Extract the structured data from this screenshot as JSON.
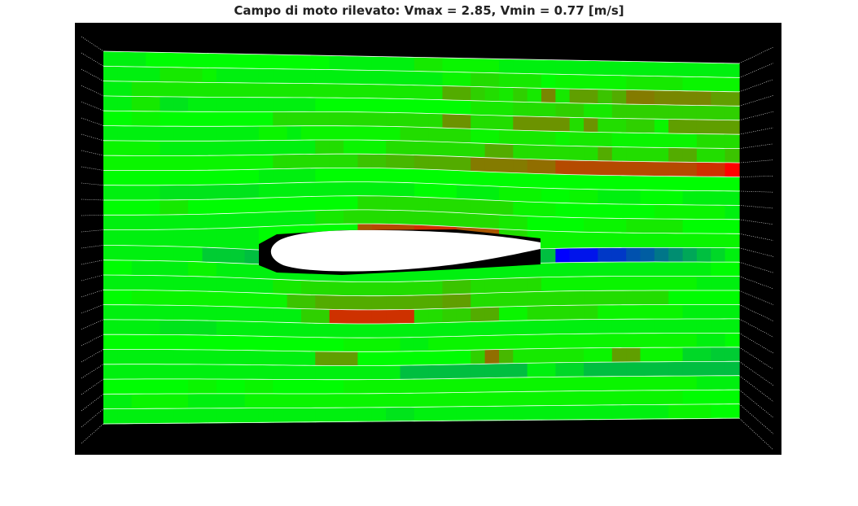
{
  "title": "Campo di moto rilevato: Vmax = 2.85, Vmin = 0.77 [m/s]",
  "chart_data": {
    "type": "heatmap",
    "title": "Campo di moto rilevato: Vmax = 2.85, Vmin = 0.77 [m/s]",
    "units": "m/s",
    "vmin": 0.77,
    "vmax": 2.85,
    "colormap": [
      "blue",
      "green",
      "red"
    ],
    "background": "#000000",
    "grid_line_color": "#ffffff",
    "airfoil_color": "#ffffff",
    "n_rows": 25,
    "n_cols": 45,
    "note_rows": "row 0 = top of field, values in m/s",
    "rows": [
      [
        1.75,
        1.75,
        1.75,
        1.8,
        1.8,
        1.8,
        1.8,
        1.8,
        1.8,
        1.8,
        1.8,
        1.8,
        1.8,
        1.8,
        1.8,
        1.8,
        1.75,
        1.75,
        1.75,
        1.75,
        1.75,
        1.75,
        1.9,
        1.9,
        1.85,
        1.85,
        1.85,
        1.85,
        1.75,
        1.75,
        1.75,
        1.75,
        1.75,
        1.75,
        1.75,
        1.75,
        1.75,
        1.75,
        1.75,
        1.75,
        1.75,
        1.75,
        1.75,
        1.75,
        1.75
      ],
      [
        1.75,
        1.75,
        1.75,
        1.75,
        1.9,
        1.9,
        1.9,
        1.85,
        1.75,
        1.75,
        1.75,
        1.75,
        1.75,
        1.75,
        1.75,
        1.75,
        1.75,
        1.75,
        1.75,
        1.75,
        1.75,
        1.75,
        1.75,
        1.75,
        1.85,
        1.85,
        1.95,
        1.95,
        1.9,
        1.9,
        1.9,
        1.8,
        1.85,
        1.85,
        1.85,
        1.85,
        1.85,
        1.9,
        1.9,
        1.9,
        1.9,
        1.85,
        1.85,
        1.85,
        1.85
      ],
      [
        1.75,
        1.75,
        1.9,
        1.9,
        1.9,
        1.9,
        1.9,
        1.9,
        1.9,
        1.9,
        1.9,
        1.9,
        1.9,
        1.9,
        1.9,
        1.9,
        1.9,
        1.9,
        1.9,
        1.9,
        1.9,
        1.9,
        1.9,
        1.9,
        2.15,
        2.15,
        2.0,
        1.95,
        1.9,
        2.0,
        1.9,
        2.3,
        1.9,
        2.2,
        2.2,
        2.05,
        2.15,
        2.35,
        2.35,
        2.3,
        2.3,
        2.3,
        2.3,
        2.2,
        2.2
      ],
      [
        1.75,
        1.75,
        1.9,
        1.9,
        1.7,
        1.7,
        1.75,
        1.75,
        1.75,
        1.75,
        1.75,
        1.75,
        1.75,
        1.75,
        1.75,
        1.8,
        1.8,
        1.8,
        1.8,
        1.8,
        1.8,
        1.8,
        1.8,
        1.8,
        1.8,
        1.8,
        1.9,
        1.9,
        1.9,
        1.95,
        1.95,
        1.95,
        2.0,
        2.0,
        1.9,
        1.9,
        2.0,
        2.0,
        2.0,
        2.0,
        2.0,
        2.0,
        2.0,
        2.0,
        2.0
      ],
      [
        1.8,
        1.8,
        1.85,
        1.85,
        1.8,
        1.8,
        1.8,
        1.8,
        1.8,
        1.8,
        1.8,
        1.8,
        1.95,
        1.95,
        1.95,
        1.95,
        1.95,
        1.95,
        1.95,
        1.95,
        1.95,
        1.95,
        1.95,
        1.95,
        2.25,
        2.25,
        1.95,
        1.95,
        1.95,
        2.25,
        2.25,
        2.25,
        2.25,
        1.95,
        2.25,
        1.95,
        1.95,
        2.0,
        2.0,
        1.85,
        2.2,
        2.2,
        2.2,
        2.2,
        2.2
      ],
      [
        1.75,
        1.75,
        1.75,
        1.75,
        1.75,
        1.75,
        1.75,
        1.75,
        1.75,
        1.75,
        1.75,
        1.85,
        1.85,
        1.75,
        1.85,
        1.85,
        1.85,
        1.85,
        1.85,
        1.85,
        1.85,
        1.95,
        1.95,
        1.95,
        1.95,
        1.95,
        1.85,
        1.85,
        1.9,
        1.9,
        1.9,
        1.9,
        1.85,
        1.9,
        1.9,
        1.9,
        1.85,
        1.85,
        1.85,
        1.85,
        1.85,
        1.85,
        1.95,
        1.95,
        1.95
      ],
      [
        1.85,
        1.85,
        1.85,
        1.85,
        1.75,
        1.75,
        1.75,
        1.75,
        1.75,
        1.75,
        1.75,
        1.75,
        1.75,
        1.75,
        1.75,
        1.95,
        1.95,
        1.85,
        1.85,
        1.85,
        1.95,
        1.95,
        1.95,
        1.95,
        1.95,
        1.95,
        1.95,
        2.15,
        2.15,
        1.95,
        1.95,
        1.95,
        1.95,
        1.95,
        1.95,
        2.15,
        1.95,
        1.95,
        1.95,
        1.95,
        2.15,
        2.15,
        1.95,
        1.95,
        2.05
      ],
      [
        1.85,
        1.85,
        1.85,
        1.85,
        1.85,
        1.85,
        1.85,
        1.85,
        1.85,
        1.85,
        1.85,
        1.85,
        1.95,
        1.95,
        1.95,
        1.95,
        1.95,
        1.95,
        2.05,
        2.05,
        2.1,
        2.1,
        2.15,
        2.15,
        2.15,
        2.15,
        2.35,
        2.35,
        2.35,
        2.35,
        2.4,
        2.4,
        2.55,
        2.55,
        2.55,
        2.55,
        2.55,
        2.55,
        2.55,
        2.55,
        2.55,
        2.55,
        2.65,
        2.65,
        2.85
      ],
      [
        1.8,
        1.8,
        1.8,
        1.8,
        1.8,
        1.8,
        1.8,
        1.8,
        1.8,
        1.8,
        1.8,
        1.75,
        1.75,
        1.75,
        1.75,
        1.8,
        1.8,
        1.8,
        1.8,
        1.8,
        1.8,
        1.8,
        1.8,
        1.8,
        1.8,
        1.8,
        1.8,
        1.8,
        1.8,
        1.8,
        1.8,
        1.8,
        1.8,
        1.8,
        1.8,
        1.8,
        1.8,
        1.8,
        1.8,
        1.8,
        1.8,
        1.8,
        1.8,
        1.8,
        1.8
      ],
      [
        1.75,
        1.75,
        1.75,
        1.75,
        1.7,
        1.7,
        1.7,
        1.7,
        1.7,
        1.7,
        1.7,
        1.75,
        1.75,
        1.75,
        1.75,
        1.75,
        1.75,
        1.75,
        1.75,
        1.75,
        1.75,
        1.75,
        1.8,
        1.8,
        1.8,
        1.75,
        1.75,
        1.75,
        1.85,
        1.85,
        1.85,
        1.8,
        1.8,
        1.85,
        1.85,
        1.75,
        1.75,
        1.75,
        1.8,
        1.8,
        1.8,
        1.75,
        1.75,
        1.75,
        1.75
      ],
      [
        1.8,
        1.8,
        1.8,
        1.8,
        1.9,
        1.9,
        1.8,
        1.8,
        1.8,
        1.8,
        1.8,
        1.8,
        1.8,
        1.8,
        1.8,
        1.8,
        1.8,
        1.8,
        1.95,
        1.95,
        1.95,
        1.95,
        1.95,
        1.95,
        1.95,
        1.95,
        1.95,
        1.95,
        1.95,
        1.85,
        1.85,
        1.85,
        1.8,
        1.8,
        1.8,
        1.8,
        1.8,
        1.8,
        1.8,
        1.85,
        1.85,
        1.85,
        1.85,
        1.85,
        1.75
      ],
      [
        1.75,
        1.75,
        1.75,
        1.75,
        1.75,
        1.75,
        1.75,
        1.75,
        1.75,
        1.75,
        1.75,
        1.75,
        1.75,
        1.75,
        1.75,
        1.9,
        1.9,
        1.95,
        1.95,
        1.95,
        1.95,
        1.95,
        1.95,
        1.95,
        1.95,
        1.95,
        1.95,
        1.95,
        1.9,
        1.9,
        1.8,
        1.8,
        1.8,
        1.8,
        1.85,
        1.85,
        1.85,
        1.9,
        1.9,
        1.9,
        1.9,
        1.8,
        1.8,
        1.8,
        1.8
      ],
      [
        1.75,
        1.75,
        1.75,
        1.75,
        1.75,
        1.75,
        1.75,
        1.75,
        1.75,
        1.75,
        1.75,
        1.8,
        1.8,
        1.8,
        1.8,
        1.8,
        1.8,
        1.8,
        2.5,
        2.55,
        2.55,
        2.55,
        2.65,
        2.65,
        2.65,
        2.5,
        2.5,
        2.5,
        1.95,
        1.95,
        1.85,
        1.85,
        1.85,
        1.85,
        1.85,
        1.85,
        1.85,
        1.85,
        1.85,
        1.85,
        1.85,
        1.85,
        1.85,
        1.85,
        1.85
      ],
      [
        1.75,
        1.75,
        1.75,
        1.75,
        1.75,
        1.75,
        1.75,
        1.6,
        1.6,
        1.6,
        1.55,
        1.55,
        1.55,
        1.55,
        1.55,
        1.55,
        1.55,
        1.55,
        1.55,
        1.55,
        1.55,
        1.55,
        1.55,
        1.55,
        1.55,
        1.55,
        1.55,
        1.55,
        1.55,
        1.55,
        1.55,
        1.55,
        0.77,
        0.85,
        0.85,
        1.0,
        1.0,
        1.1,
        1.15,
        1.25,
        1.35,
        1.45,
        1.55,
        1.65,
        1.75
      ],
      [
        1.8,
        1.8,
        1.75,
        1.75,
        1.75,
        1.75,
        1.85,
        1.85,
        1.75,
        1.75,
        1.75,
        1.75,
        1.75,
        1.75,
        1.75,
        1.75,
        1.75,
        1.75,
        1.75,
        1.75,
        1.75,
        1.75,
        1.75,
        1.75,
        1.75,
        1.75,
        1.75,
        1.75,
        1.75,
        1.75,
        1.75,
        1.75,
        1.75,
        1.75,
        1.75,
        1.75,
        1.75,
        1.75,
        1.75,
        1.75,
        1.75,
        1.75,
        1.75,
        1.8,
        1.8
      ],
      [
        1.75,
        1.75,
        1.75,
        1.75,
        1.75,
        1.75,
        1.75,
        1.75,
        1.75,
        1.75,
        1.75,
        1.75,
        1.9,
        1.9,
        1.95,
        1.95,
        1.95,
        1.95,
        1.95,
        1.95,
        1.95,
        1.95,
        1.95,
        1.95,
        2.05,
        2.05,
        1.95,
        1.95,
        1.95,
        1.95,
        1.95,
        1.85,
        1.85,
        1.85,
        1.85,
        1.85,
        1.85,
        1.85,
        1.85,
        1.85,
        1.85,
        1.85,
        1.75,
        1.75,
        1.75
      ],
      [
        1.8,
        1.8,
        1.85,
        1.85,
        1.85,
        1.85,
        1.85,
        1.85,
        1.85,
        1.85,
        1.85,
        1.85,
        1.85,
        2.05,
        2.05,
        2.15,
        2.15,
        2.15,
        2.15,
        2.15,
        2.15,
        2.15,
        2.15,
        2.15,
        2.2,
        2.2,
        1.95,
        1.95,
        1.95,
        1.95,
        1.95,
        1.95,
        1.95,
        1.95,
        1.95,
        1.95,
        1.95,
        1.95,
        1.95,
        1.95,
        1.8,
        1.8,
        1.8,
        1.8,
        1.8
      ],
      [
        1.75,
        1.75,
        1.75,
        1.75,
        1.75,
        1.75,
        1.75,
        1.75,
        1.75,
        1.75,
        1.75,
        1.75,
        1.75,
        1.75,
        2.0,
        2.0,
        2.65,
        2.65,
        2.65,
        2.65,
        2.65,
        2.65,
        1.95,
        1.95,
        2.0,
        2.0,
        2.15,
        2.15,
        1.85,
        1.85,
        1.95,
        1.95,
        1.95,
        1.95,
        1.95,
        1.85,
        1.85,
        1.85,
        1.85,
        1.85,
        1.85,
        1.75,
        1.75,
        1.75,
        1.75
      ],
      [
        1.75,
        1.75,
        1.75,
        1.75,
        1.7,
        1.7,
        1.7,
        1.7,
        1.75,
        1.75,
        1.75,
        1.75,
        1.75,
        1.75,
        1.75,
        1.75,
        1.75,
        1.75,
        1.75,
        1.75,
        1.75,
        1.75,
        1.75,
        1.75,
        1.75,
        1.75,
        1.75,
        1.75,
        1.75,
        1.75,
        1.75,
        1.75,
        1.75,
        1.75,
        1.75,
        1.75,
        1.75,
        1.75,
        1.75,
        1.75,
        1.75,
        1.75,
        1.75,
        1.75,
        1.75
      ],
      [
        1.8,
        1.8,
        1.8,
        1.8,
        1.8,
        1.8,
        1.8,
        1.8,
        1.8,
        1.8,
        1.8,
        1.8,
        1.8,
        1.8,
        1.8,
        1.8,
        1.8,
        1.85,
        1.85,
        1.85,
        1.85,
        1.75,
        1.75,
        1.85,
        1.85,
        1.85,
        1.85,
        1.85,
        1.85,
        1.85,
        1.85,
        1.85,
        1.85,
        1.85,
        1.85,
        1.85,
        1.85,
        1.85,
        1.85,
        1.85,
        1.85,
        1.85,
        1.75,
        1.75,
        1.8
      ],
      [
        1.75,
        1.75,
        1.75,
        1.75,
        1.75,
        1.75,
        1.75,
        1.75,
        1.75,
        1.75,
        1.75,
        1.75,
        1.75,
        1.75,
        1.75,
        2.2,
        2.2,
        2.2,
        1.8,
        1.8,
        1.8,
        1.8,
        1.8,
        1.8,
        1.8,
        1.8,
        2.0,
        2.4,
        2.1,
        1.9,
        1.9,
        1.9,
        1.9,
        1.9,
        1.85,
        1.85,
        2.2,
        2.2,
        1.85,
        1.85,
        1.85,
        1.65,
        1.65,
        1.6,
        1.6
      ],
      [
        1.75,
        1.75,
        1.75,
        1.75,
        1.75,
        1.75,
        1.75,
        1.75,
        1.75,
        1.75,
        1.75,
        1.75,
        1.75,
        1.75,
        1.75,
        1.75,
        1.75,
        1.75,
        1.75,
        1.75,
        1.75,
        1.55,
        1.55,
        1.55,
        1.55,
        1.55,
        1.55,
        1.55,
        1.55,
        1.55,
        1.75,
        1.75,
        1.65,
        1.65,
        1.55,
        1.55,
        1.55,
        1.55,
        1.55,
        1.55,
        1.55,
        1.55,
        1.55,
        1.55,
        1.55
      ],
      [
        1.8,
        1.8,
        1.8,
        1.8,
        1.8,
        1.8,
        1.85,
        1.85,
        1.8,
        1.8,
        1.85,
        1.85,
        1.8,
        1.8,
        1.8,
        1.8,
        1.8,
        1.85,
        1.85,
        1.85,
        1.85,
        1.85,
        1.85,
        1.85,
        1.85,
        1.85,
        1.85,
        1.85,
        1.85,
        1.85,
        1.85,
        1.85,
        1.85,
        1.85,
        1.85,
        1.85,
        1.85,
        1.85,
        1.85,
        1.85,
        1.85,
        1.85,
        1.75,
        1.75,
        1.75
      ],
      [
        1.75,
        1.75,
        1.85,
        1.85,
        1.85,
        1.85,
        1.75,
        1.75,
        1.75,
        1.75,
        1.85,
        1.85,
        1.85,
        1.85,
        1.85,
        1.85,
        1.85,
        1.85,
        1.85,
        1.85,
        1.85,
        1.85,
        1.85,
        1.85,
        1.85,
        1.85,
        1.85,
        1.85,
        1.85,
        1.85,
        1.85,
        1.85,
        1.85,
        1.85,
        1.85,
        1.85,
        1.85,
        1.85,
        1.85,
        1.85,
        1.85,
        1.8,
        1.8,
        1.8,
        1.8
      ],
      [
        1.75,
        1.75,
        1.75,
        1.75,
        1.75,
        1.75,
        1.75,
        1.75,
        1.75,
        1.75,
        1.75,
        1.75,
        1.75,
        1.75,
        1.75,
        1.75,
        1.75,
        1.75,
        1.75,
        1.75,
        1.7,
        1.7,
        1.75,
        1.75,
        1.75,
        1.75,
        1.75,
        1.75,
        1.75,
        1.75,
        1.75,
        1.75,
        1.75,
        1.75,
        1.75,
        1.75,
        1.75,
        1.75,
        1.75,
        1.75,
        1.85,
        1.85,
        1.85,
        1.8,
        1.8
      ]
    ]
  }
}
